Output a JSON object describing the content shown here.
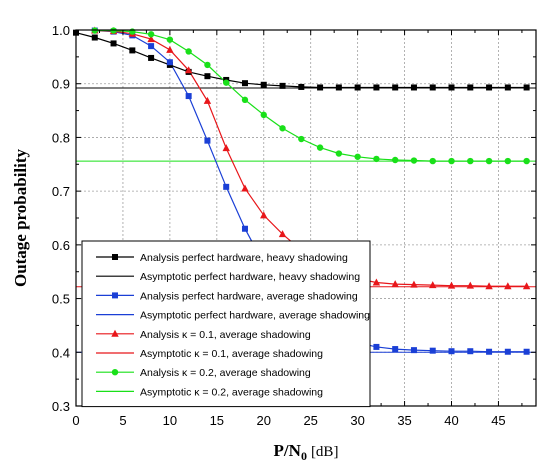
{
  "chart_data": {
    "type": "line",
    "xlabel_main": "P/N",
    "xlabel_sub": "0",
    "xlabel_unit": "[dB]",
    "ylabel": "Outage probability",
    "xlim": [
      0,
      49
    ],
    "ylim": [
      0.3,
      1.0
    ],
    "xticks": [
      0,
      5,
      10,
      15,
      20,
      25,
      30,
      35,
      40,
      45
    ],
    "yticks": [
      0.3,
      0.4,
      0.5,
      0.6,
      0.7,
      0.8,
      0.9,
      1.0
    ],
    "x_tick_labels": [
      "0",
      "5",
      "10",
      "15",
      "20",
      "25",
      "30",
      "35",
      "40",
      "45"
    ],
    "y_tick_labels": [
      "0.3",
      "0.4",
      "0.5",
      "0.6",
      "0.7",
      "0.8",
      "0.9",
      "1.0"
    ],
    "grid": true,
    "legend_position": "lower-left",
    "series": [
      {
        "name": "Analysis perfect hardware, heavy shadowing",
        "style": "line-marker",
        "marker": "square",
        "color": "#000000",
        "x": [
          0,
          2,
          4,
          6,
          8,
          10,
          12,
          14,
          16,
          18,
          20,
          22,
          24,
          26,
          28,
          30,
          32,
          34,
          36,
          38,
          40,
          42,
          44,
          46,
          48
        ],
        "y": [
          0.995,
          0.986,
          0.975,
          0.962,
          0.948,
          0.935,
          0.922,
          0.914,
          0.907,
          0.901,
          0.898,
          0.896,
          0.894,
          0.893,
          0.893,
          0.893,
          0.893,
          0.893,
          0.893,
          0.893,
          0.893,
          0.893,
          0.893,
          0.893,
          0.893
        ]
      },
      {
        "name": "Asymptotic perfect hardware, heavy shadowing",
        "style": "hline",
        "color": "#000000",
        "y": 0.892
      },
      {
        "name": "Analysis perfect hardware, average shadowing",
        "style": "line-marker",
        "marker": "square",
        "color": "#1a3fd6",
        "x": [
          2,
          4,
          6,
          8,
          10,
          12,
          14,
          16,
          18,
          20,
          22,
          24,
          26,
          28,
          30,
          32,
          34,
          36,
          38,
          40,
          42,
          44,
          46,
          48
        ],
        "y": [
          0.999,
          0.997,
          0.99,
          0.97,
          0.94,
          0.877,
          0.794,
          0.708,
          0.63,
          0.565,
          0.515,
          0.475,
          0.447,
          0.43,
          0.418,
          0.41,
          0.406,
          0.404,
          0.403,
          0.402,
          0.402,
          0.401,
          0.401,
          0.401
        ]
      },
      {
        "name": "Asymptotic perfect hardware, average shadowing",
        "style": "hline",
        "color": "#1a3fd6",
        "y": 0.4
      },
      {
        "name": "Analysis κ = 0.1, average shadowing",
        "style": "line-marker",
        "marker": "triangle",
        "color": "#e8161a",
        "x": [
          2,
          4,
          6,
          8,
          10,
          12,
          14,
          16,
          18,
          20,
          22,
          24,
          26,
          28,
          30,
          32,
          34,
          36,
          38,
          40,
          42,
          44,
          46,
          48
        ],
        "y": [
          0.999,
          0.998,
          0.993,
          0.983,
          0.963,
          0.925,
          0.868,
          0.78,
          0.705,
          0.655,
          0.62,
          0.59,
          0.565,
          0.547,
          0.537,
          0.53,
          0.527,
          0.526,
          0.525,
          0.524,
          0.524,
          0.523,
          0.523,
          0.523
        ]
      },
      {
        "name": "Asymptotic κ = 0.1, average shadowing",
        "style": "hline",
        "color": "#e8161a",
        "y": 0.522
      },
      {
        "name": "Analysis κ = 0.2, average shadowing",
        "style": "line-marker",
        "marker": "circle",
        "color": "#19e019",
        "x": [
          2,
          4,
          6,
          8,
          10,
          12,
          14,
          16,
          18,
          20,
          22,
          24,
          26,
          28,
          30,
          32,
          34,
          36,
          38,
          40,
          42,
          44,
          46,
          48
        ],
        "y": [
          0.999,
          0.999,
          0.997,
          0.992,
          0.982,
          0.96,
          0.935,
          0.902,
          0.87,
          0.842,
          0.817,
          0.797,
          0.781,
          0.77,
          0.764,
          0.76,
          0.758,
          0.757,
          0.756,
          0.756,
          0.756,
          0.756,
          0.756,
          0.756
        ]
      },
      {
        "name": "Asymptotic κ = 0.2, average shadowing",
        "style": "hline",
        "color": "#19e019",
        "y": 0.756
      }
    ]
  }
}
